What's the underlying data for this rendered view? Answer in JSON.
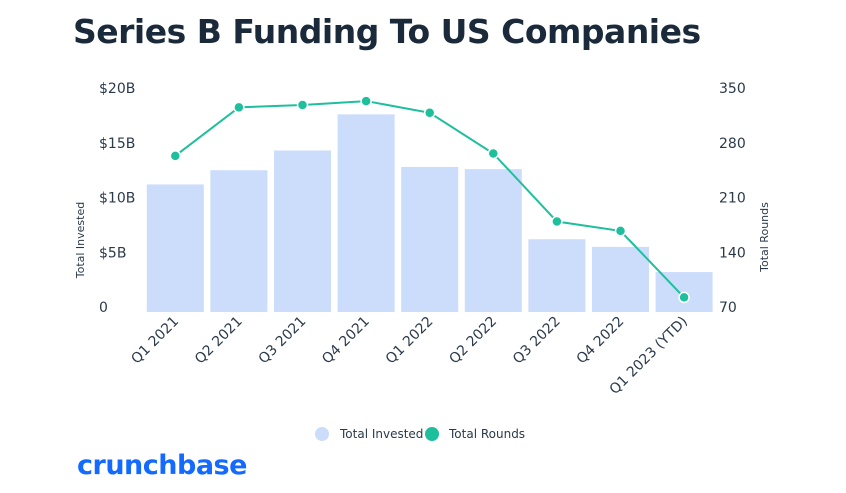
{
  "chart_data": {
    "type": "bar",
    "title": "Series B Funding To US Companies",
    "categories": [
      "Q1 2021",
      "Q2 2021",
      "Q3 2021",
      "Q4 2021",
      "Q1 2022",
      "Q2 2022",
      "Q3 2022",
      "Q4 2022",
      "Q1 2023 (YTD)"
    ],
    "series": [
      {
        "name": "Total Invested",
        "type": "bar",
        "axis": "left",
        "unit": "$B",
        "color": "#cbddfb",
        "values": [
          11.1,
          12.4,
          14.2,
          17.5,
          12.7,
          12.5,
          6.1,
          5.4,
          3.1
        ]
      },
      {
        "name": "Total Rounds",
        "type": "line",
        "axis": "right",
        "color": "#1dbf9c",
        "values": [
          262,
          324,
          327,
          332,
          317,
          265,
          178,
          166,
          81
        ]
      }
    ],
    "ylabel_left": "Total Invested",
    "ylabel_right": "Total Rounds",
    "ylim_left": [
      0,
      20
    ],
    "ylim_right": [
      70,
      350
    ],
    "yticks_left": [
      "0",
      "$5B",
      "$10B",
      "$15B",
      "$20B"
    ],
    "yticks_right": [
      "70",
      "140",
      "210",
      "280",
      "350"
    ],
    "grid": false,
    "legend_position": "bottom-center"
  },
  "brand": {
    "logo": "crunchbase",
    "color": "#146aff"
  }
}
